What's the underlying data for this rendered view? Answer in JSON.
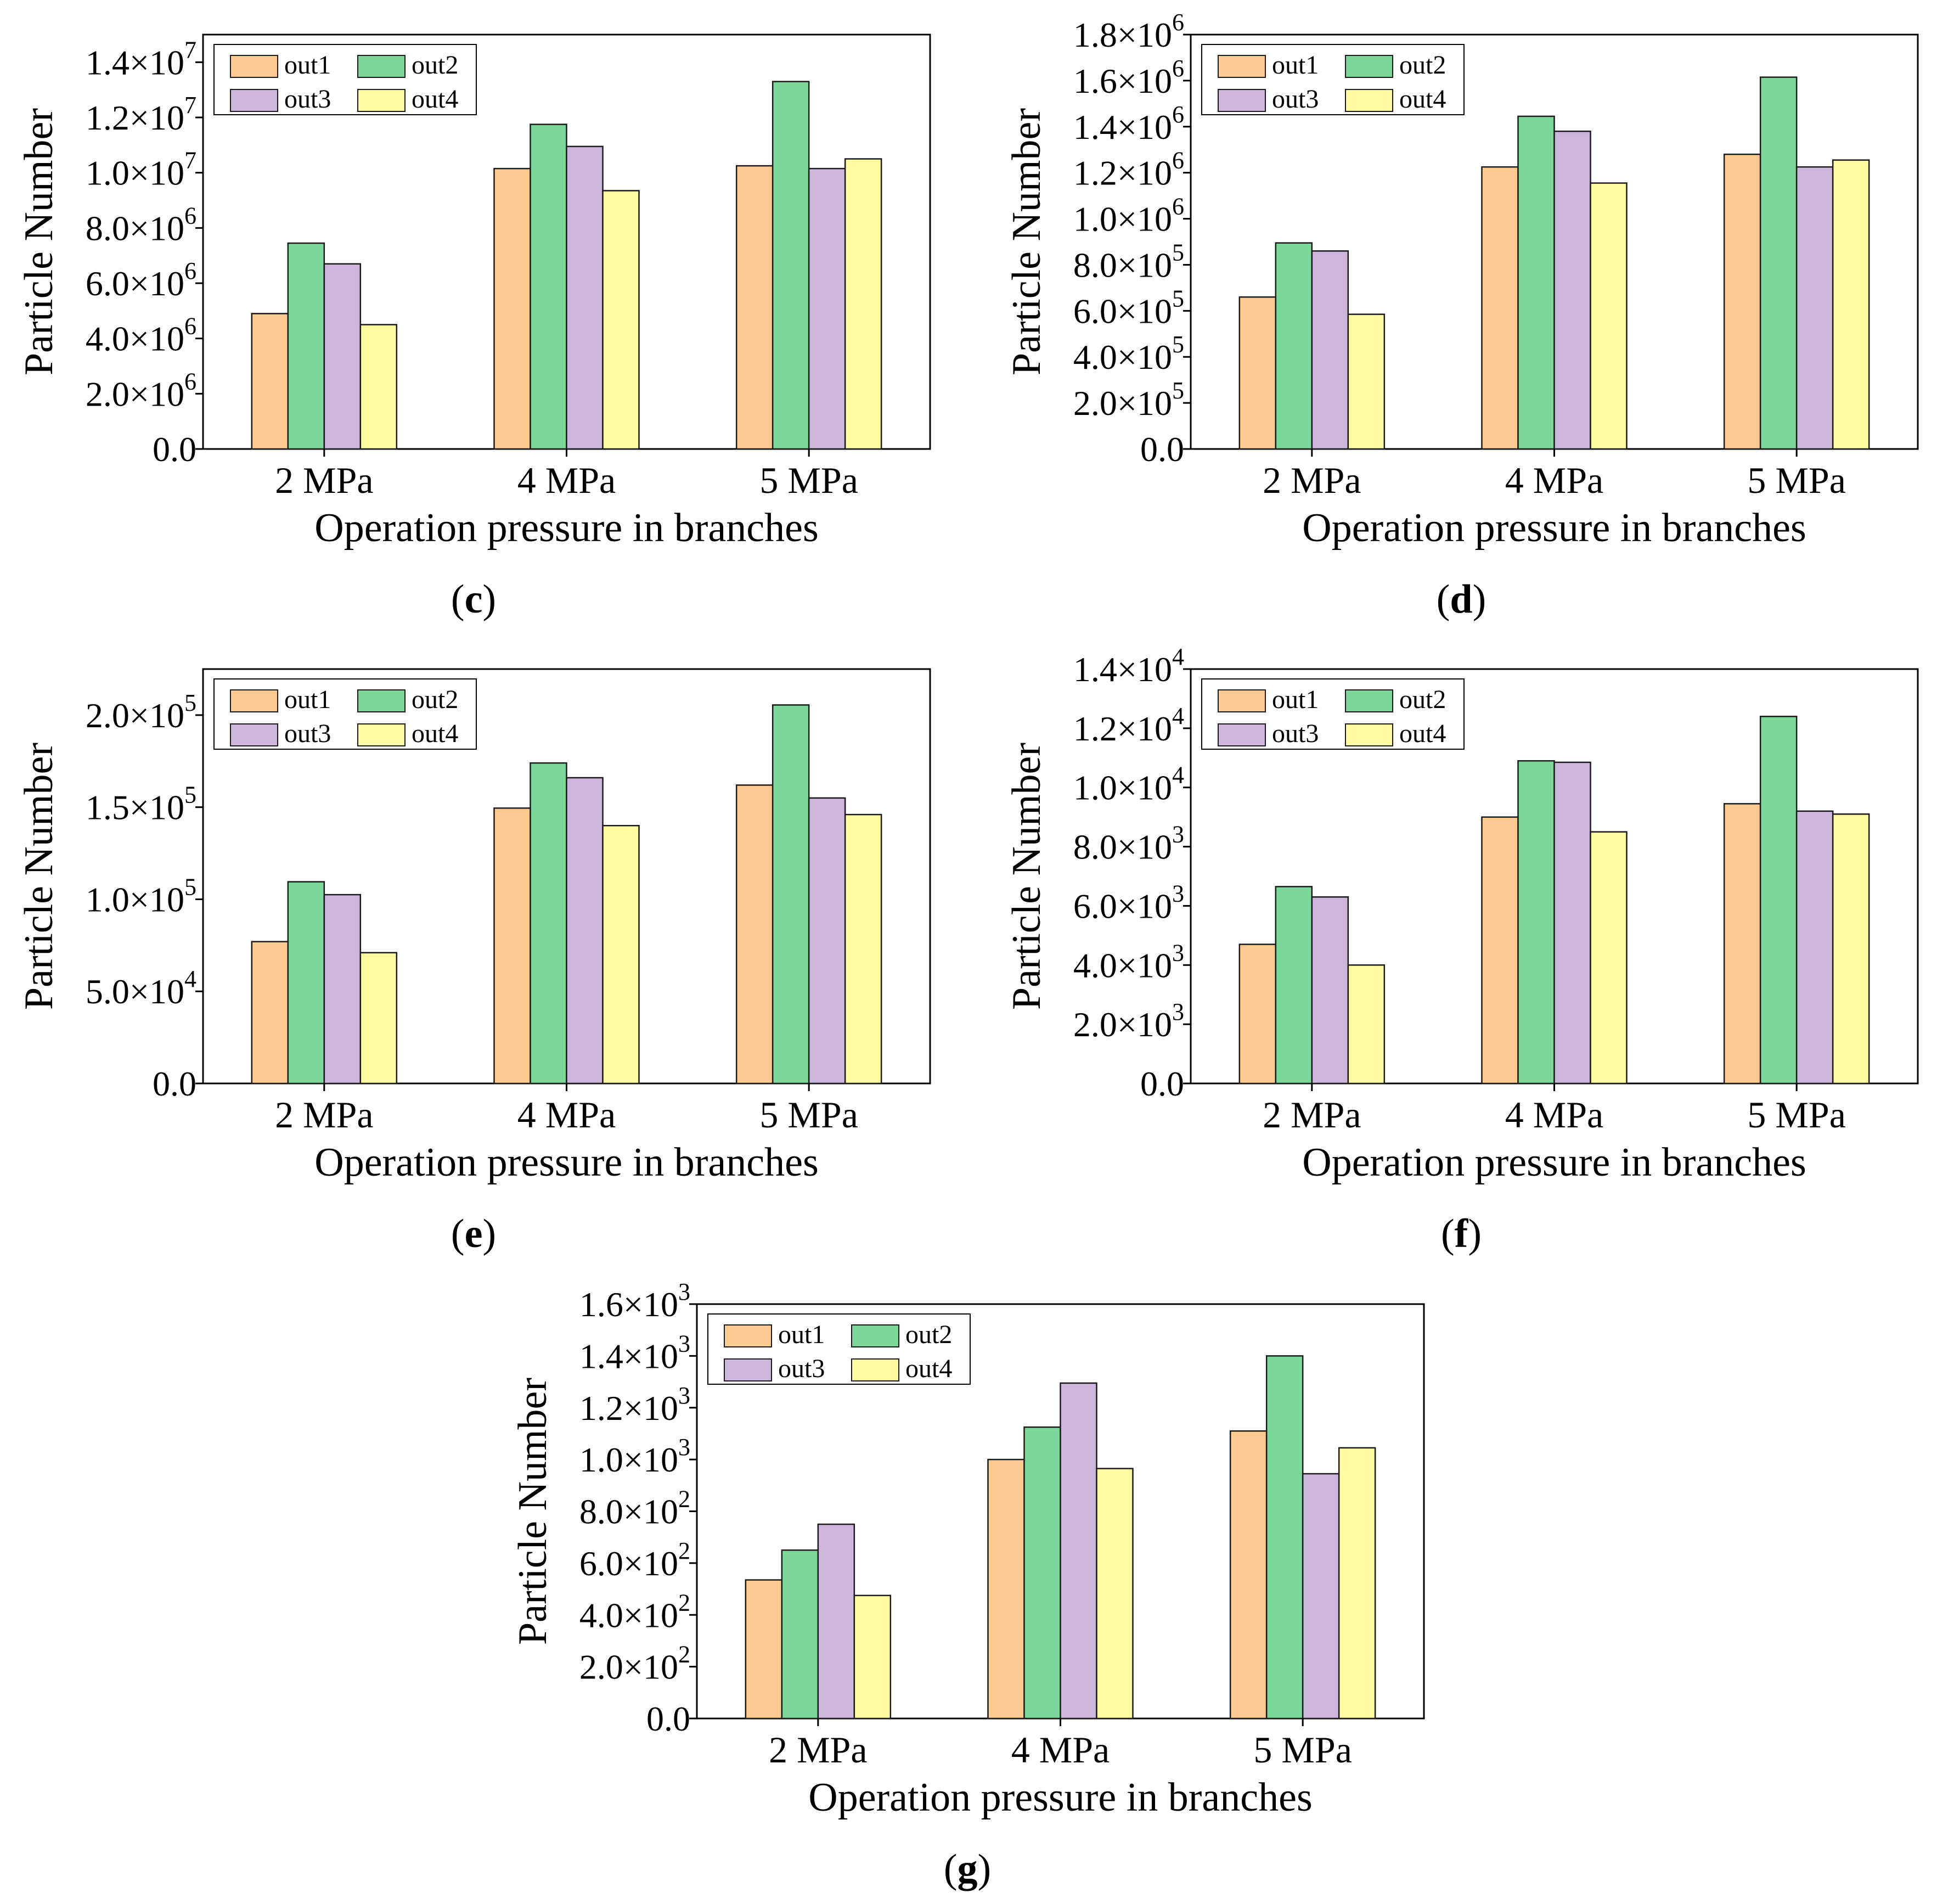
{
  "legend": {
    "labels": [
      "out1",
      "out2",
      "out3",
      "out4"
    ],
    "colors": [
      "#FDCB91",
      "#7ED79A",
      "#CDB6DB",
      "#FEFBA0"
    ]
  },
  "chart_data": [
    {
      "panel": "c",
      "type": "bar",
      "title": "",
      "xlabel": "Operation pressure in branches",
      "ylabel": "Particle Number",
      "categories": [
        "2 MPa",
        "4 MPa",
        "5 MPa"
      ],
      "ylim": [
        0,
        15000000
      ],
      "ticks": [
        {
          "value": 0,
          "mantissa": "0.0",
          "exp": ""
        },
        {
          "value": 2000000,
          "mantissa": "2.0×10",
          "exp": "6"
        },
        {
          "value": 4000000,
          "mantissa": "4.0×10",
          "exp": "6"
        },
        {
          "value": 6000000,
          "mantissa": "6.0×10",
          "exp": "6"
        },
        {
          "value": 8000000,
          "mantissa": "8.0×10",
          "exp": "6"
        },
        {
          "value": 10000000,
          "mantissa": "1.0×10",
          "exp": "7"
        },
        {
          "value": 12000000,
          "mantissa": "1.2×10",
          "exp": "7"
        },
        {
          "value": 14000000,
          "mantissa": "1.4×10",
          "exp": "7"
        }
      ],
      "series": [
        {
          "name": "out1",
          "values": [
            4900000,
            10150000,
            10250000
          ]
        },
        {
          "name": "out2",
          "values": [
            7450000,
            11750000,
            13300000
          ]
        },
        {
          "name": "out3",
          "values": [
            6700000,
            10950000,
            10150000
          ]
        },
        {
          "name": "out4",
          "values": [
            4500000,
            9350000,
            10500000
          ]
        }
      ]
    },
    {
      "panel": "d",
      "type": "bar",
      "title": "",
      "xlabel": "Operation pressure in branches",
      "ylabel": "Particle Number",
      "categories": [
        "2 MPa",
        "4 MPa",
        "5 MPa"
      ],
      "ylim": [
        0,
        1800000
      ],
      "ticks": [
        {
          "value": 0,
          "mantissa": "0.0",
          "exp": ""
        },
        {
          "value": 200000,
          "mantissa": "2.0×10",
          "exp": "5"
        },
        {
          "value": 400000,
          "mantissa": "4.0×10",
          "exp": "5"
        },
        {
          "value": 600000,
          "mantissa": "6.0×10",
          "exp": "5"
        },
        {
          "value": 800000,
          "mantissa": "8.0×10",
          "exp": "5"
        },
        {
          "value": 1000000,
          "mantissa": "1.0×10",
          "exp": "6"
        },
        {
          "value": 1200000,
          "mantissa": "1.2×10",
          "exp": "6"
        },
        {
          "value": 1400000,
          "mantissa": "1.4×10",
          "exp": "6"
        },
        {
          "value": 1600000,
          "mantissa": "1.6×10",
          "exp": "6"
        },
        {
          "value": 1800000,
          "mantissa": "1.8×10",
          "exp": "6"
        }
      ],
      "series": [
        {
          "name": "out1",
          "values": [
            660000,
            1225000,
            1280000
          ]
        },
        {
          "name": "out2",
          "values": [
            895000,
            1445000,
            1615000
          ]
        },
        {
          "name": "out3",
          "values": [
            860000,
            1380000,
            1225000
          ]
        },
        {
          "name": "out4",
          "values": [
            585000,
            1155000,
            1255000
          ]
        }
      ]
    },
    {
      "panel": "e",
      "type": "bar",
      "title": "",
      "xlabel": "Operation pressure in branches",
      "ylabel": "Particle Number",
      "categories": [
        "2 MPa",
        "4 MPa",
        "5 MPa"
      ],
      "ylim": [
        0,
        225000
      ],
      "ticks": [
        {
          "value": 0,
          "mantissa": "0.0",
          "exp": ""
        },
        {
          "value": 50000,
          "mantissa": "5.0×10",
          "exp": "4"
        },
        {
          "value": 100000,
          "mantissa": "1.0×10",
          "exp": "5"
        },
        {
          "value": 150000,
          "mantissa": "1.5×10",
          "exp": "5"
        },
        {
          "value": 200000,
          "mantissa": "2.0×10",
          "exp": "5"
        }
      ],
      "series": [
        {
          "name": "out1",
          "values": [
            77000,
            149500,
            162000
          ]
        },
        {
          "name": "out2",
          "values": [
            109500,
            174000,
            205500
          ]
        },
        {
          "name": "out3",
          "values": [
            102500,
            166000,
            155000
          ]
        },
        {
          "name": "out4",
          "values": [
            71000,
            140000,
            146000
          ]
        }
      ]
    },
    {
      "panel": "f",
      "type": "bar",
      "title": "",
      "xlabel": "Operation pressure in branches",
      "ylabel": "Particle Number",
      "categories": [
        "2 MPa",
        "4 MPa",
        "5 MPa"
      ],
      "ylim": [
        0,
        14000
      ],
      "ticks": [
        {
          "value": 0,
          "mantissa": "0.0",
          "exp": ""
        },
        {
          "value": 2000,
          "mantissa": "2.0×10",
          "exp": "3"
        },
        {
          "value": 4000,
          "mantissa": "4.0×10",
          "exp": "3"
        },
        {
          "value": 6000,
          "mantissa": "6.0×10",
          "exp": "3"
        },
        {
          "value": 8000,
          "mantissa": "8.0×10",
          "exp": "3"
        },
        {
          "value": 10000,
          "mantissa": "1.0×10",
          "exp": "4"
        },
        {
          "value": 12000,
          "mantissa": "1.2×10",
          "exp": "4"
        },
        {
          "value": 14000,
          "mantissa": "1.4×10",
          "exp": "4"
        }
      ],
      "series": [
        {
          "name": "out1",
          "values": [
            4700,
            9000,
            9450
          ]
        },
        {
          "name": "out2",
          "values": [
            6650,
            10900,
            12400
          ]
        },
        {
          "name": "out3",
          "values": [
            6300,
            10850,
            9200
          ]
        },
        {
          "name": "out4",
          "values": [
            4000,
            8500,
            9100
          ]
        }
      ]
    },
    {
      "panel": "g",
      "type": "bar",
      "title": "",
      "xlabel": "Operation pressure in branches",
      "ylabel": "Particle Number",
      "categories": [
        "2 MPa",
        "4 MPa",
        "5 MPa"
      ],
      "ylim": [
        0,
        1600
      ],
      "ticks": [
        {
          "value": 0,
          "mantissa": "0.0",
          "exp": ""
        },
        {
          "value": 200,
          "mantissa": "2.0×10",
          "exp": "2"
        },
        {
          "value": 400,
          "mantissa": "4.0×10",
          "exp": "2"
        },
        {
          "value": 600,
          "mantissa": "6.0×10",
          "exp": "2"
        },
        {
          "value": 800,
          "mantissa": "8.0×10",
          "exp": "2"
        },
        {
          "value": 1000,
          "mantissa": "1.0×10",
          "exp": "3"
        },
        {
          "value": 1200,
          "mantissa": "1.2×10",
          "exp": "3"
        },
        {
          "value": 1400,
          "mantissa": "1.4×10",
          "exp": "3"
        },
        {
          "value": 1600,
          "mantissa": "1.6×10",
          "exp": "3"
        }
      ],
      "series": [
        {
          "name": "out1",
          "values": [
            535,
            1000,
            1110
          ]
        },
        {
          "name": "out2",
          "values": [
            650,
            1125,
            1400
          ]
        },
        {
          "name": "out3",
          "values": [
            750,
            1295,
            945
          ]
        },
        {
          "name": "out4",
          "values": [
            475,
            965,
            1045
          ]
        }
      ]
    }
  ],
  "captions": [
    {
      "open": "(",
      "letter": "c",
      "close": ")"
    },
    {
      "open": "(",
      "letter": "d",
      "close": ")"
    },
    {
      "open": "(",
      "letter": "e",
      "close": ")"
    },
    {
      "open": "(",
      "letter": "f",
      "close": ")"
    },
    {
      "open": "(",
      "letter": "g",
      "close": ")"
    }
  ]
}
